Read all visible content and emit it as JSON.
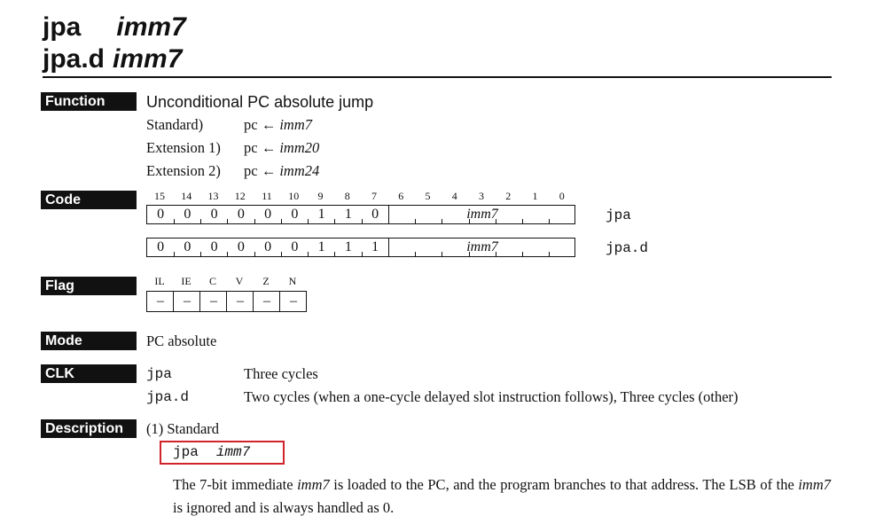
{
  "header": {
    "line1_mnemonic": "jpa",
    "line1_operand": "imm7",
    "line2_mnemonic": "jpa.d",
    "line2_operand": "imm7"
  },
  "sections": {
    "function": "Function",
    "code": "Code",
    "flag": "Flag",
    "mode": "Mode",
    "clk": "CLK",
    "description": "Description"
  },
  "function": {
    "summary": "Unconditional PC absolute jump",
    "rows": [
      {
        "label": "Standard)",
        "pc": "pc ←",
        "operand": "imm7"
      },
      {
        "label": "Extension 1)",
        "pc": "pc ←",
        "operand": "imm20"
      },
      {
        "label": "Extension 2)",
        "pc": "pc ←",
        "operand": "imm24"
      }
    ]
  },
  "code": {
    "bit_numbers": [
      "15",
      "14",
      "13",
      "12",
      "11",
      "10",
      "9",
      "8",
      "7",
      "6",
      "5",
      "4",
      "3",
      "2",
      "1",
      "0"
    ],
    "rows": [
      {
        "bits": [
          "0",
          "0",
          "0",
          "0",
          "0",
          "0",
          "1",
          "1",
          "0"
        ],
        "imm": "imm7",
        "mnemonic": "jpa"
      },
      {
        "bits": [
          "0",
          "0",
          "0",
          "0",
          "0",
          "0",
          "1",
          "1",
          "1"
        ],
        "imm": "imm7",
        "mnemonic": "jpa.d"
      }
    ]
  },
  "flag": {
    "names": [
      "IL",
      "IE",
      "C",
      "V",
      "Z",
      "N"
    ],
    "values": [
      "–",
      "–",
      "–",
      "–",
      "–",
      "–"
    ]
  },
  "mode": "PC absolute",
  "clk": [
    {
      "mnemonic": "jpa",
      "text": "Three cycles"
    },
    {
      "mnemonic": "jpa.d",
      "text": "Two cycles (when a one-cycle delayed slot instruction follows), Three cycles (other)"
    }
  ],
  "description": {
    "heading": "(1) Standard",
    "syntax_mnemonic": "jpa",
    "syntax_operand": "imm7",
    "para_1": "The 7-bit immediate ",
    "para_imm1": "imm7",
    "para_2": " is loaded to the PC, and the program branches to that address. The LSB of the ",
    "para_imm2": "imm7",
    "para_3": " is ignored and is always handled as 0."
  }
}
